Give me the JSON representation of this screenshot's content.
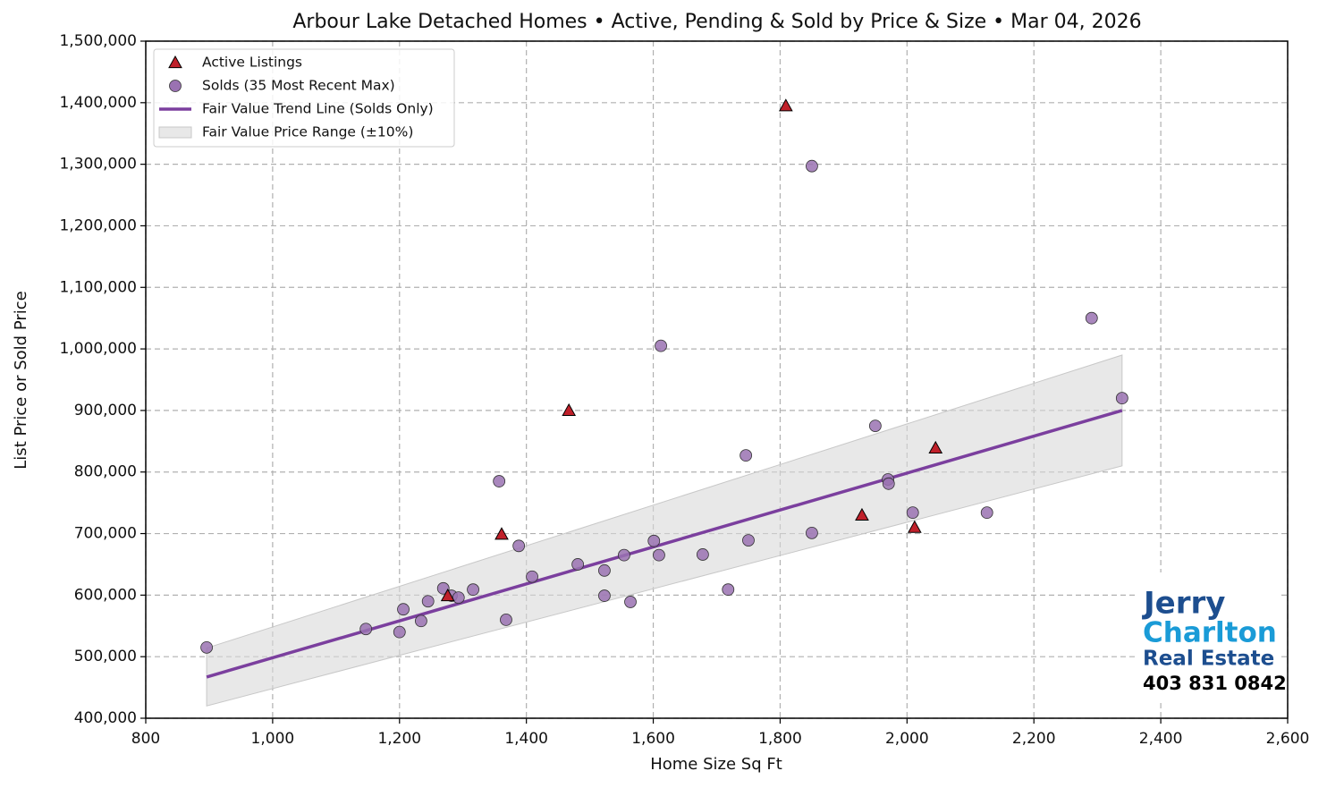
{
  "chart_data": {
    "type": "scatter",
    "title": "Arbour Lake Detached Homes • Active, Pending & Sold by Price & Size • Mar 04, 2026",
    "x_label": "Home Size Sq Ft",
    "y_label": "List Price or Sold Price",
    "xlim": [
      800,
      2600
    ],
    "xticks": [
      800,
      {
        "value": 1000,
        "label": "1,000"
      },
      {
        "value": 1200,
        "label": "1,200"
      },
      {
        "value": 1400,
        "label": "1,400"
      },
      {
        "value": 1600,
        "label": "1,600"
      },
      {
        "value": 1800,
        "label": "1,800"
      },
      {
        "value": 2000,
        "label": "2,000"
      },
      {
        "value": 2200,
        "label": "2,200"
      },
      {
        "value": 2400,
        "label": "2,400"
      },
      {
        "value": 2600,
        "label": "2,600"
      }
    ],
    "ylim": [
      400000,
      1500000
    ],
    "yticks": [
      {
        "value": 400000,
        "label": "400,000"
      },
      {
        "value": 500000,
        "label": "500,000"
      },
      {
        "value": 600000,
        "label": "600,000"
      },
      {
        "value": 700000,
        "label": "700,000"
      },
      {
        "value": 800000,
        "label": "800,000"
      },
      {
        "value": 900000,
        "label": "900,000"
      },
      {
        "value": 1000000,
        "label": "1,000,000"
      },
      {
        "value": 1100000,
        "label": "1,100,000"
      },
      {
        "value": 1200000,
        "label": "1,200,000"
      },
      {
        "value": 1300000,
        "label": "1,300,000"
      },
      {
        "value": 1400000,
        "label": "1,400,000"
      },
      {
        "value": 1500000,
        "label": "1,500,000"
      }
    ],
    "grid": true,
    "legend": "upper-left",
    "series": [
      {
        "name": "Active Listings",
        "kind": "triangle",
        "color": "#c0202a",
        "x": [
          1809,
          1467,
          1361,
          1276,
          1929,
          2012,
          2045
        ],
        "values": [
          1395000,
          900000,
          699000,
          599000,
          730000,
          710000,
          839000
        ]
      },
      {
        "name": "Solds (35 Most Recent Max)",
        "kind": "circle",
        "color": "#9a72b2",
        "x": [
          896,
          1147,
          1200,
          1206,
          1234,
          1245,
          1269,
          1282,
          1293,
          1316,
          1357,
          1368,
          1388,
          1409,
          1481,
          1523,
          1523,
          1554,
          1564,
          1601,
          1609,
          1612,
          1678,
          1718,
          1746,
          1750,
          1850,
          1850,
          1950,
          1970,
          1971,
          2009,
          2126,
          2291,
          2339
        ],
        "values": [
          515000,
          545000,
          540000,
          577000,
          558000,
          590000,
          611000,
          599000,
          596000,
          609000,
          785000,
          560000,
          680000,
          630000,
          650000,
          640000,
          599000,
          665000,
          589000,
          688000,
          665000,
          1005000,
          666000,
          609000,
          827000,
          689000,
          1297000,
          701000,
          875000,
          788000,
          781000,
          734000,
          734000,
          1050000,
          920000
        ]
      },
      {
        "name": "Fair Value Trend Line (Solds Only)",
        "kind": "line",
        "color": "#7b3f9e",
        "x": [
          896,
          2339
        ],
        "values": [
          467000,
          900000
        ]
      },
      {
        "name": "Fair Value Price Range (±10%)",
        "kind": "band",
        "color": "#d9d9d9",
        "x": [
          896,
          2339
        ],
        "lower": [
          420000,
          810000
        ],
        "upper": [
          514000,
          990000
        ]
      }
    ]
  },
  "logo": {
    "line1": "Jerry",
    "line2": "Charlton",
    "line3": "Real Estate",
    "phone": "403 831 0842"
  }
}
